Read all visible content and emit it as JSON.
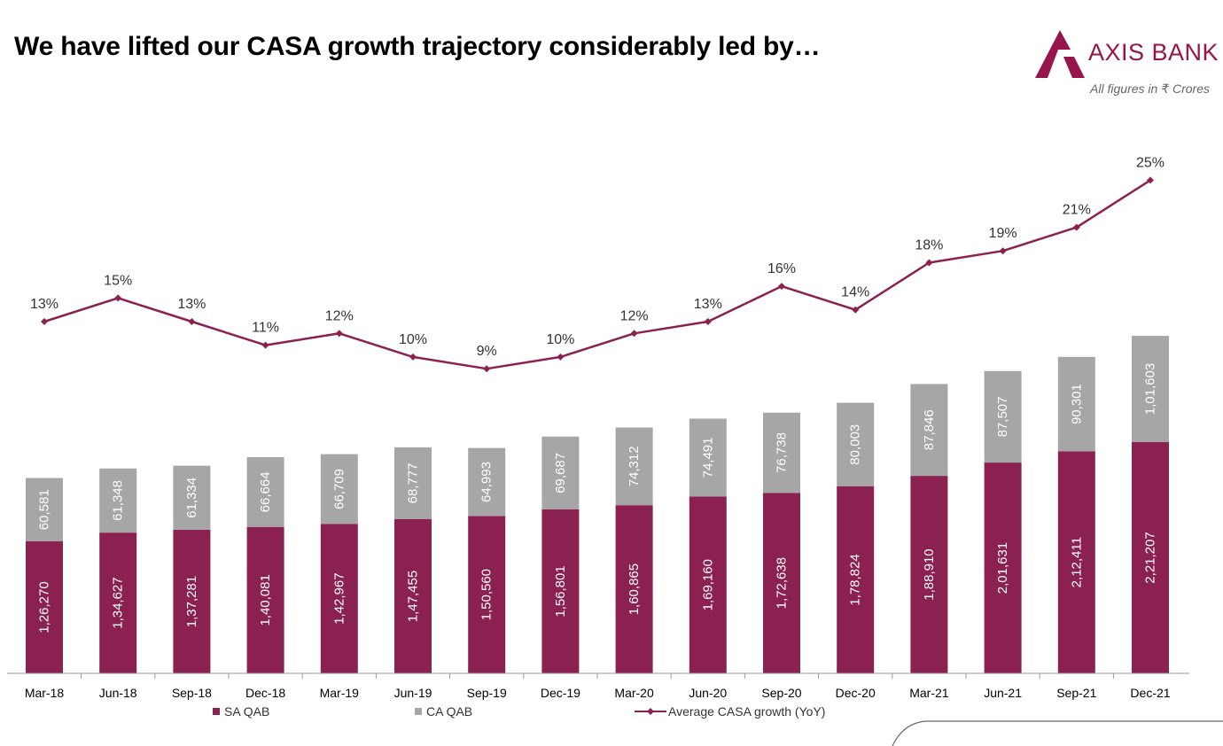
{
  "header": {
    "title": "We have lifted our CASA growth trajectory considerably led by…",
    "brand": "AXIS BANK",
    "units_note": "All figures in ₹ Crores"
  },
  "colors": {
    "brand": "#97144d",
    "sa": "#8b2150",
    "ca": "#a6a6a6",
    "line": "#8b2150"
  },
  "chart_data": {
    "type": "bar",
    "stacked": true,
    "categories": [
      "Mar-18",
      "Jun-18",
      "Sep-18",
      "Dec-18",
      "Mar-19",
      "Jun-19",
      "Sep-19",
      "Dec-19",
      "Mar-20",
      "Jun-20",
      "Sep-20",
      "Dec-20",
      "Mar-21",
      "Jun-21",
      "Sep-21",
      "Dec-21"
    ],
    "series": [
      {
        "name": "SA QAB",
        "type": "bar",
        "values": [
          126270,
          134627,
          137281,
          140081,
          142967,
          147455,
          150560,
          156801,
          160865,
          169160,
          172638,
          178824,
          188910,
          201631,
          212411,
          221207
        ],
        "labels": [
          "1,26,270",
          "1,34,627",
          "1,37,281",
          "1,40,081",
          "1,42,967",
          "1,47,455",
          "1,50,560",
          "1,56,801",
          "1,60,865",
          "1,69,160",
          "1,72,638",
          "1,78,824",
          "1,88,910",
          "2,01,631",
          "2,12,411",
          "2,21,207"
        ]
      },
      {
        "name": "CA QAB",
        "type": "bar",
        "values": [
          60581,
          61348,
          61334,
          66664,
          66709,
          68777,
          64993,
          69687,
          74312,
          74491,
          76738,
          80003,
          87846,
          87507,
          90301,
          101603
        ],
        "labels": [
          "60,581",
          "61,348",
          "61,334",
          "66,664",
          "66,709",
          "68,777",
          "64,993",
          "69,687",
          "74,312",
          "74,491",
          "76,738",
          "80,003",
          "87,846",
          "87,507",
          "90,301",
          "1,01,603"
        ]
      },
      {
        "name": "Average CASA growth (YoY)",
        "type": "line",
        "unit": "%",
        "values": [
          13,
          15,
          13,
          11,
          12,
          10,
          9,
          10,
          12,
          13,
          16,
          14,
          18,
          19,
          21,
          25
        ],
        "labels": [
          "13%",
          "15%",
          "13%",
          "11%",
          "12%",
          "10%",
          "9%",
          "10%",
          "12%",
          "13%",
          "16%",
          "14%",
          "18%",
          "19%",
          "21%",
          "25%"
        ]
      }
    ],
    "title": "We have lifted our CASA growth trajectory considerably led by…",
    "xlabel": "",
    "ylabel": "",
    "legend": "bottom"
  }
}
